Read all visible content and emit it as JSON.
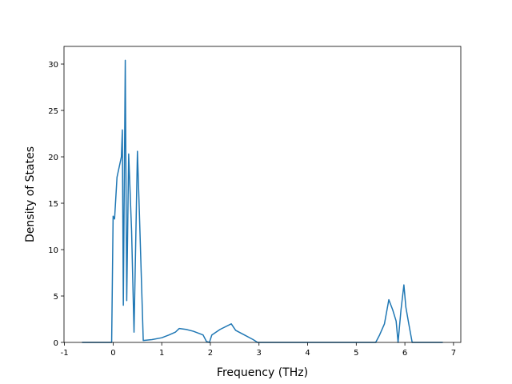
{
  "chart_data": {
    "type": "line",
    "x_label": "Frequency (THz)",
    "y_label": "Density of States",
    "x": [
      -0.64,
      -0.03,
      0.0,
      0.03,
      0.08,
      0.17,
      0.19,
      0.21,
      0.25,
      0.28,
      0.32,
      0.38,
      0.43,
      0.5,
      0.54,
      0.62,
      0.8,
      1.0,
      1.15,
      1.28,
      1.36,
      1.5,
      1.65,
      1.85,
      1.92,
      1.98,
      2.03,
      2.2,
      2.43,
      2.52,
      2.7,
      2.88,
      2.97,
      5.4,
      5.48,
      5.58,
      5.67,
      5.75,
      5.82,
      5.86,
      5.92,
      5.98,
      6.02,
      6.08,
      6.15,
      6.78
    ],
    "series": [
      {
        "color": "#1f77b4",
        "values": [
          0,
          0,
          13.6,
          13.3,
          17.8,
          20.0,
          22.9,
          4.0,
          30.4,
          4.5,
          20.3,
          12.0,
          1.1,
          20.6,
          14.0,
          0.2,
          0.3,
          0.5,
          0.8,
          1.1,
          1.5,
          1.4,
          1.2,
          0.8,
          0.1,
          0,
          0.8,
          1.4,
          2.0,
          1.3,
          0.8,
          0.3,
          0,
          0,
          0.8,
          2.0,
          4.6,
          3.5,
          2.3,
          0,
          3.5,
          6.2,
          3.8,
          2.0,
          0,
          0
        ]
      }
    ],
    "xlim": [
      -1.01,
      7.15
    ],
    "xticks": [
      -1,
      0,
      1,
      2,
      3,
      4,
      5,
      6,
      7
    ],
    "ylim": [
      0,
      31.9
    ],
    "yticks": [
      0,
      5,
      10,
      15,
      20,
      25,
      30
    ]
  }
}
